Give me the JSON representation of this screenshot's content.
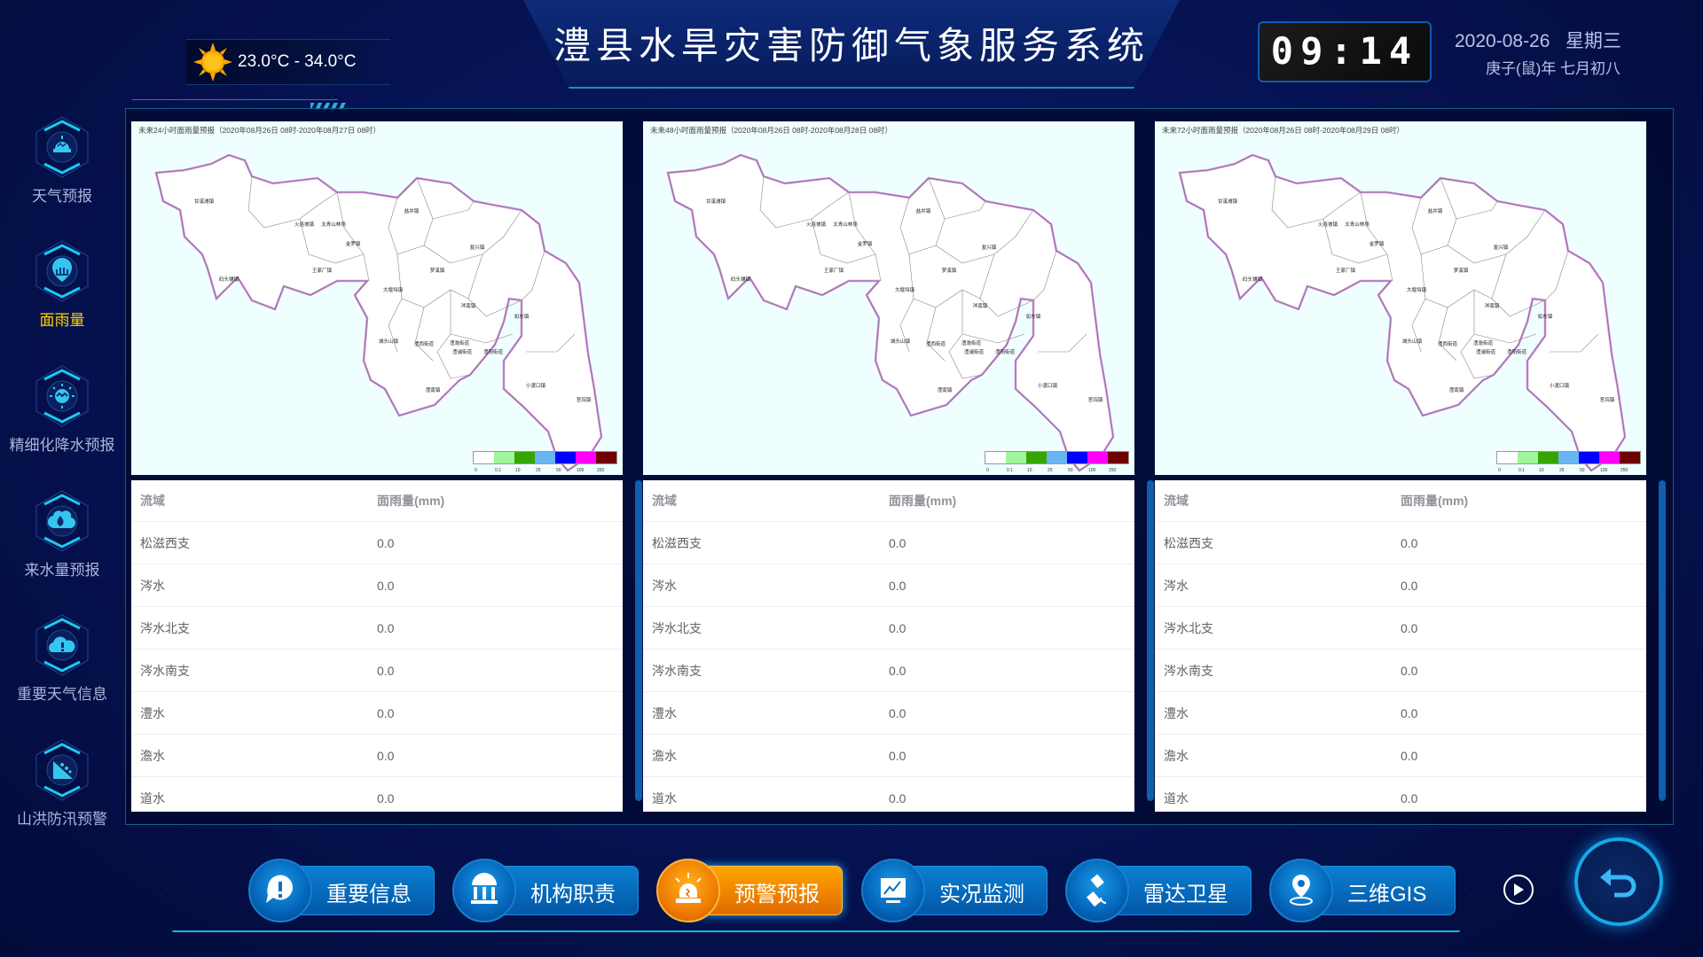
{
  "header": {
    "title": "澧县水旱灾害防御气象服务系统",
    "weather": {
      "icon": "sun-icon",
      "temperature_range": "23.0°C - 34.0°C"
    },
    "clock": "09:14",
    "date": "2020-08-26",
    "weekday": "星期三",
    "lunar_date": "庚子(鼠)年 七月初八"
  },
  "sidebar": {
    "active": "面雨量",
    "items": [
      {
        "label": "天气预报",
        "icon": "weather-alarm-icon"
      },
      {
        "label": "面雨量",
        "icon": "rain-area-icon"
      },
      {
        "label": "精细化降水预报",
        "icon": "sun-cloud-icon"
      },
      {
        "label": "来水量预报",
        "icon": "water-drop-icon"
      },
      {
        "label": "重要天气信息",
        "icon": "cloud-warning-icon"
      },
      {
        "label": "山洪防汛预警",
        "icon": "landslide-icon"
      }
    ]
  },
  "map_common": {
    "towns": [
      "甘溪滩镇",
      "火连坡镇",
      "太青山林场",
      "金罗镇",
      "盐井镇",
      "复兴镇",
      "王家厂镇",
      "码头铺镇",
      "梦溪镇",
      "大堰垱镇",
      "涔南镇",
      "如东镇",
      "城头山镇",
      "澧西街道",
      "澧澹街道",
      "澧浦街道",
      "澧阳街道",
      "澧南镇",
      "小渡口镇",
      "官垸镇"
    ],
    "legend": {
      "colors": [
        "#ffffff",
        "#a0f59a",
        "#35a500",
        "#69b4f2",
        "#0000ff",
        "#ff00ff",
        "#700000"
      ],
      "ticks": [
        "0",
        "0.1",
        "10",
        "25",
        "50",
        "100",
        "250"
      ]
    },
    "outline_color": "#d58fe0"
  },
  "panels": [
    {
      "map_title": "未来24小时面雨量预报（2020年08月26日 08时-2020年08月27日 08时）",
      "columns": [
        "流域",
        "面雨量(mm)"
      ],
      "rows": [
        [
          "松滋西支",
          "0.0"
        ],
        [
          "涔水",
          "0.0"
        ],
        [
          "涔水北支",
          "0.0"
        ],
        [
          "涔水南支",
          "0.0"
        ],
        [
          "澧水",
          "0.0"
        ],
        [
          "澹水",
          "0.0"
        ],
        [
          "道水",
          "0.0"
        ]
      ]
    },
    {
      "map_title": "未来48小时面雨量预报（2020年08月26日 08时-2020年08月28日 08时）",
      "columns": [
        "流域",
        "面雨量(mm)"
      ],
      "rows": [
        [
          "松滋西支",
          "0.0"
        ],
        [
          "涔水",
          "0.0"
        ],
        [
          "涔水北支",
          "0.0"
        ],
        [
          "涔水南支",
          "0.0"
        ],
        [
          "澧水",
          "0.0"
        ],
        [
          "澹水",
          "0.0"
        ],
        [
          "道水",
          "0.0"
        ]
      ]
    },
    {
      "map_title": "未来72小时面雨量预报（2020年08月26日 08时-2020年08月29日 08时）",
      "columns": [
        "流域",
        "面雨量(mm)"
      ],
      "rows": [
        [
          "松滋西支",
          "0.0"
        ],
        [
          "涔水",
          "0.0"
        ],
        [
          "涔水北支",
          "0.0"
        ],
        [
          "涔水南支",
          "0.0"
        ],
        [
          "澧水",
          "0.0"
        ],
        [
          "澹水",
          "0.0"
        ],
        [
          "道水",
          "0.0"
        ]
      ]
    }
  ],
  "bottom_nav": {
    "active": "预警预报",
    "items": [
      {
        "label": "重要信息",
        "icon": "exclamation-bubble-icon"
      },
      {
        "label": "机构职责",
        "icon": "institution-icon"
      },
      {
        "label": "预警预报",
        "icon": "alarm-light-icon"
      },
      {
        "label": "实况监测",
        "icon": "line-chart-icon"
      },
      {
        "label": "雷达卫星",
        "icon": "satellite-icon"
      },
      {
        "label": "三维GIS",
        "icon": "location-pin-icon"
      }
    ],
    "play_icon": "play-icon",
    "back_icon": "back-arrow-icon"
  },
  "colors": {
    "accent_orange": "#f08a00",
    "active_label": "#ffd200",
    "nav_blue": "#0a6fc4",
    "background": "#061456"
  }
}
